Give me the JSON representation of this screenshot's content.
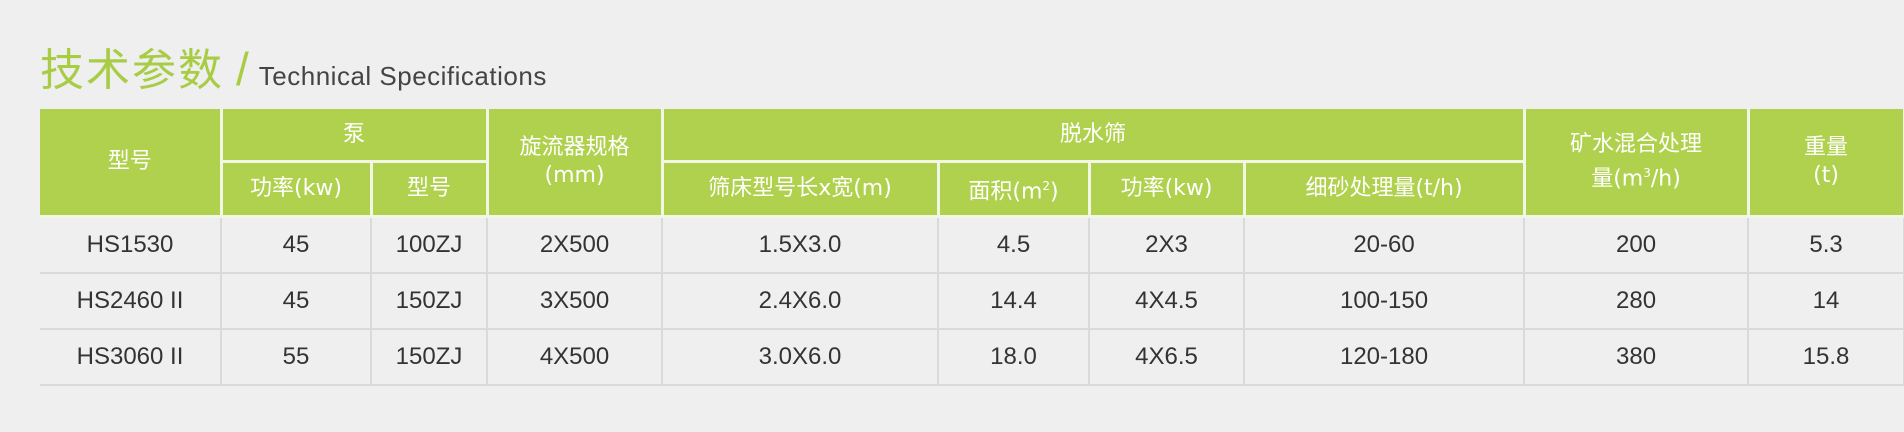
{
  "title": {
    "cn": "技术参数",
    "slash": "/",
    "en": "Technical Specifications"
  },
  "colors": {
    "accent": "#b0d14d",
    "title_green": "#a9cc45",
    "text": "#333333"
  },
  "headers": {
    "model": "型号",
    "pump": "泵",
    "pump_power": "功率(kw)",
    "pump_model": "型号",
    "cyclone": "旋流器规格",
    "cyclone_unit": "(mm)",
    "screen": "脱水筛",
    "screen_size": "筛床型号长x宽(m)",
    "area": "面积(m",
    "area_sup": "2",
    "area_close": ")",
    "screen_power": "功率(kw)",
    "fine_sand": "细砂处理量(t/h)",
    "mix": "矿水混合处理",
    "mix_unit_a": "量(m",
    "mix_unit_sup": "3",
    "mix_unit_b": "/h)",
    "weight": "重量",
    "weight_unit": "(t)"
  },
  "rows": [
    [
      "HS1530",
      "45",
      "100ZJ",
      "2X500",
      "1.5X3.0",
      "4.5",
      "2X3",
      "20-60",
      "200",
      "5.3"
    ],
    [
      "HS2460 II",
      "45",
      "150ZJ",
      "3X500",
      "2.4X6.0",
      "14.4",
      "4X4.5",
      "100-150",
      "280",
      "14"
    ],
    [
      "HS3060 II",
      "55",
      "150ZJ",
      "4X500",
      "3.0X6.0",
      "18.0",
      "4X6.5",
      "120-180",
      "380",
      "15.8"
    ]
  ]
}
